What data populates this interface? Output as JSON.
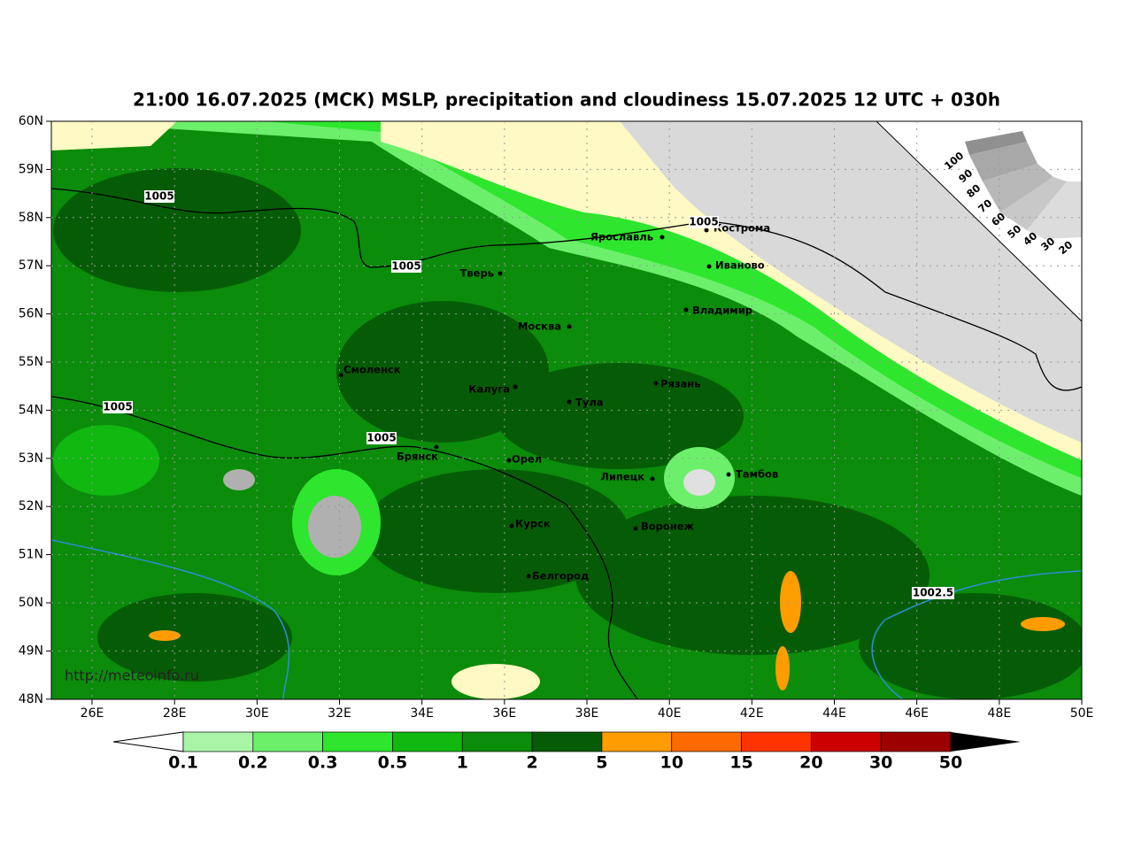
{
  "title": "21:00 16.07.2025 (МСК) MSLP, precipitation and cloudiness 15.07.2025 12 UTC + 030h",
  "lat_labels": [
    "60N",
    "59N",
    "58N",
    "57N",
    "56N",
    "55N",
    "54N",
    "53N",
    "52N",
    "51N",
    "50N",
    "49N",
    "48N"
  ],
  "lon_labels": [
    "26E",
    "28E",
    "30E",
    "32E",
    "34E",
    "36E",
    "38E",
    "40E",
    "42E",
    "44E",
    "46E",
    "48E",
    "50E"
  ],
  "cities": [
    "Ярославль",
    "Кострома",
    "Иваново",
    "Тверь",
    "Владимир",
    "Москва",
    "Смоленск",
    "Калуга",
    "Рязань",
    "Тула",
    "Брянск",
    "Орел",
    "Тамбов",
    "Липецк",
    "Курск",
    "Воронеж",
    "Белгород"
  ],
  "isobar_labels": [
    "1005",
    "1005",
    "1005",
    "1005",
    "1005",
    "1002.5"
  ],
  "watermark": "http://meteoinfo.ru",
  "cloud_scale": [
    100,
    90,
    80,
    70,
    60,
    50,
    40,
    30,
    20
  ],
  "colorbar": {
    "ticks": [
      0.1,
      0.2,
      0.3,
      0.5,
      1,
      2,
      5,
      10,
      15,
      20,
      30,
      50
    ],
    "colors": [
      "#a8f5a8",
      "#6cf06c",
      "#2ee62e",
      "#10b810",
      "#0b8c0b",
      "#065c06",
      "#ff9d00",
      "#ff6a00",
      "#ff3300",
      "#cc0000",
      "#9c0000"
    ]
  }
}
